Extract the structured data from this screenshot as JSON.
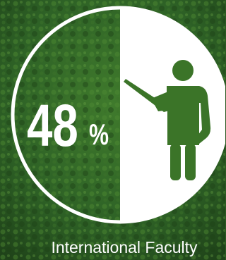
{
  "stat": {
    "value": 48,
    "unit": "%",
    "label": "International Faculty"
  }
}
